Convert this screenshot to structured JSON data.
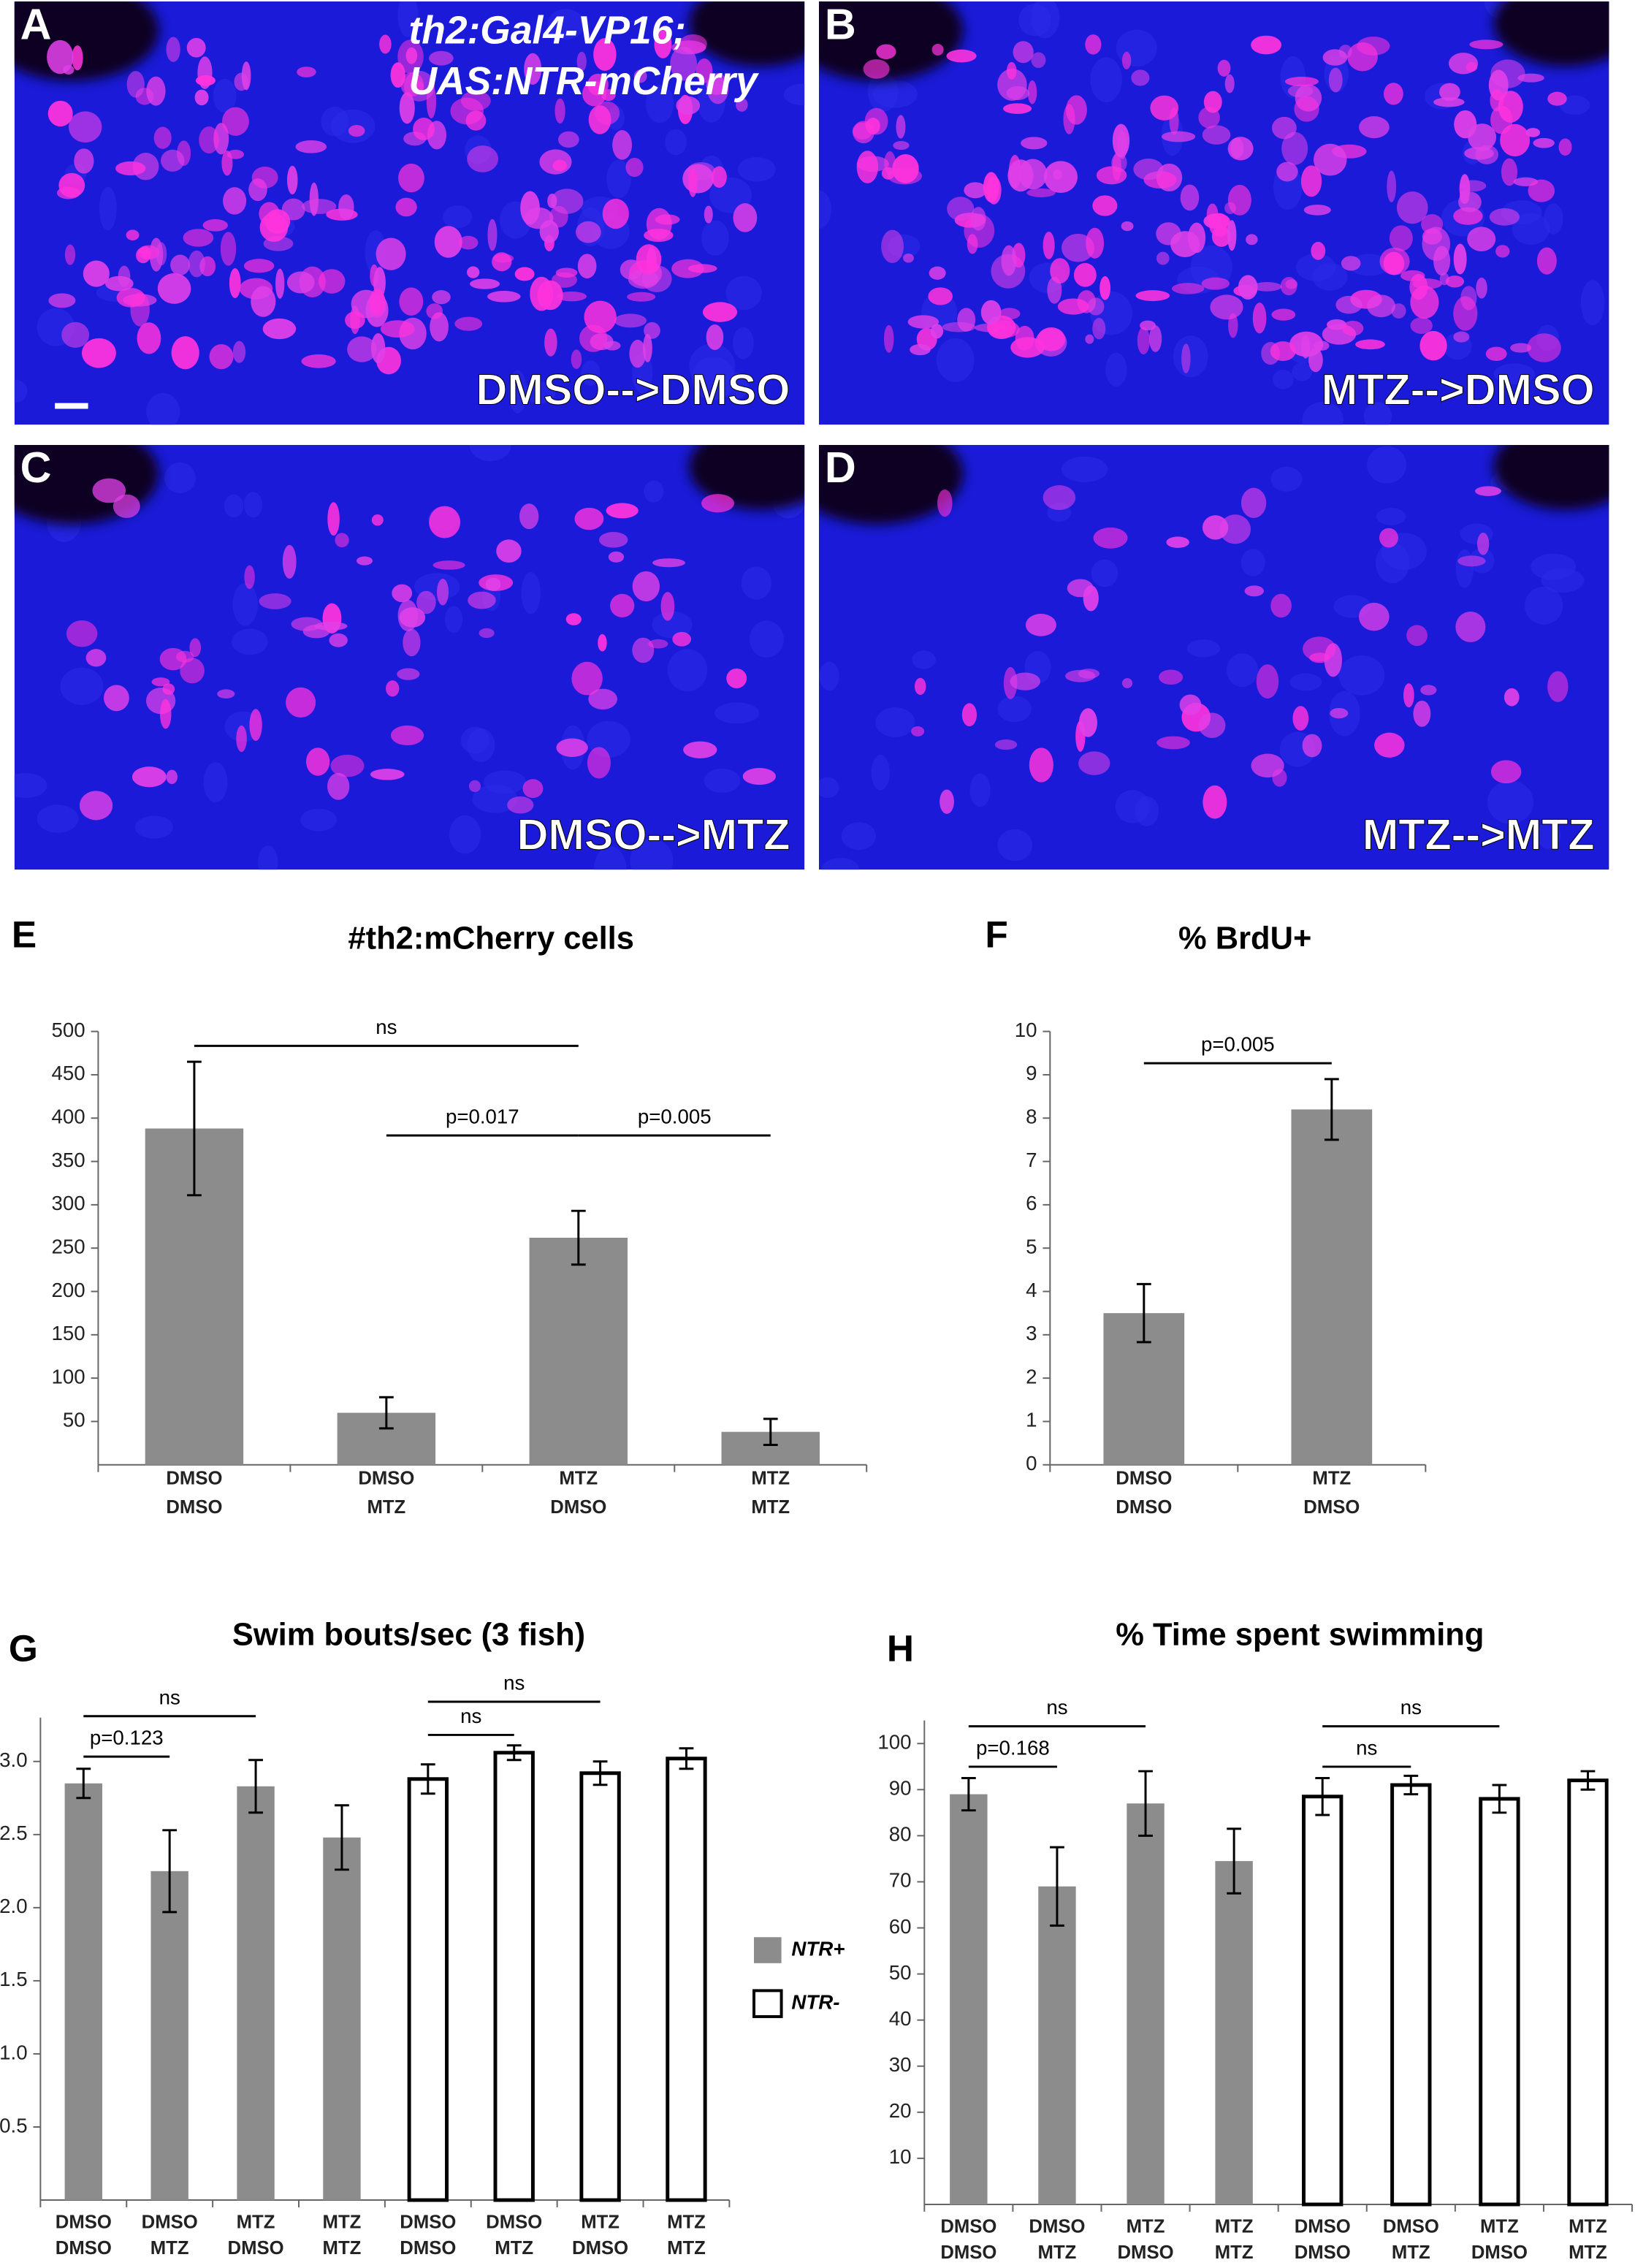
{
  "panels": [
    {
      "letter": "A",
      "label": "DMSO-->DMSO"
    },
    {
      "letter": "B",
      "label": "MTZ-->DMSO"
    },
    {
      "letter": "C",
      "label": "DMSO-->MTZ"
    },
    {
      "letter": "D",
      "label": "MTZ-->MTZ"
    }
  ],
  "panel_a_caption": [
    "th2:Gal4-VP16;",
    "UAS:NTR-mCherry"
  ],
  "chart_data": [
    {
      "type": "bar",
      "panel": "E",
      "title": "#th2:mCherry cells",
      "categories": [
        [
          "DMSO",
          "DMSO"
        ],
        [
          "DMSO",
          "MTZ"
        ],
        [
          "MTZ",
          "DMSO"
        ],
        [
          "MTZ",
          "MTZ"
        ]
      ],
      "series": [
        {
          "color": "#8c8c8c",
          "values": [
            388,
            60,
            262,
            38
          ],
          "errors": [
            77,
            18,
            31,
            15
          ]
        }
      ],
      "ylim": [
        0,
        500
      ],
      "yticks": [
        50,
        100,
        150,
        200,
        250,
        300,
        350,
        400,
        450,
        500
      ],
      "annotations": [
        {
          "text": "ns",
          "from": 0,
          "to": 2
        },
        {
          "text": "p=0.017",
          "from": 1,
          "to": 2
        },
        {
          "text": "p=0.005",
          "from": 2,
          "to": 3
        }
      ]
    },
    {
      "type": "bar",
      "panel": "F",
      "title": "% BrdU+",
      "categories": [
        [
          "DMSO",
          "DMSO"
        ],
        [
          "MTZ",
          "DMSO"
        ]
      ],
      "series": [
        {
          "color": "#8c8c8c",
          "values": [
            3.5,
            8.2
          ],
          "errors": [
            0.67,
            0.7
          ]
        }
      ],
      "ylim": [
        0,
        10
      ],
      "yticks": [
        0,
        1,
        2,
        3,
        4,
        5,
        6,
        7,
        8,
        9,
        10
      ],
      "annotations": [
        {
          "text": "p=0.005",
          "from": 0,
          "to": 1
        }
      ]
    },
    {
      "type": "bar",
      "panel": "G",
      "title": "Swim bouts/sec (3 fish)",
      "categories": [
        [
          "DMSO",
          "DMSO"
        ],
        [
          "DMSO",
          "MTZ"
        ],
        [
          "MTZ",
          "DMSO"
        ],
        [
          "MTZ",
          "MTZ"
        ],
        [
          "DMSO",
          "DMSO"
        ],
        [
          "DMSO",
          "MTZ"
        ],
        [
          "MTZ",
          "DMSO"
        ],
        [
          "MTZ",
          "MTZ"
        ]
      ],
      "series": [
        {
          "name": "NTR+",
          "color": "#8c8c8c",
          "edgecolor": "#8c8c8c",
          "values": [
            2.85,
            2.25,
            2.83,
            2.48,
            null,
            null,
            null,
            null
          ],
          "errors": [
            0.1,
            0.28,
            0.18,
            0.22,
            null,
            null,
            null,
            null
          ]
        },
        {
          "name": "NTR-",
          "color": "#ffffff",
          "edgecolor": "#000000",
          "values": [
            null,
            null,
            null,
            null,
            2.88,
            3.06,
            2.92,
            3.02
          ],
          "errors": [
            null,
            null,
            null,
            null,
            0.1,
            0.05,
            0.08,
            0.07
          ]
        }
      ],
      "ylim": [
        0,
        3.3
      ],
      "yticks": [
        0.5,
        {
          "value": 1,
          "label": "1.0"
        },
        1.5,
        {
          "value": 2,
          "label": "2.0"
        },
        2.5,
        {
          "value": 3,
          "label": "3.0"
        }
      ],
      "annotations": [
        {
          "text": "p=0.123",
          "from": 0,
          "to": 1
        },
        {
          "text": "ns",
          "from": 0,
          "to": 2
        },
        {
          "text": "ns",
          "from": 4,
          "to": 5
        },
        {
          "text": "ns",
          "from": 4,
          "to": 6
        }
      ]
    },
    {
      "type": "bar",
      "panel": "H",
      "title": "% Time spent swimming",
      "categories": [
        [
          "DMSO",
          "DMSO"
        ],
        [
          "DMSO",
          "MTZ"
        ],
        [
          "MTZ",
          "DMSO"
        ],
        [
          "MTZ",
          "MTZ"
        ],
        [
          "DMSO",
          "DMSO"
        ],
        [
          "DMSO",
          "MTZ"
        ],
        [
          "MTZ",
          "DMSO"
        ],
        [
          "MTZ",
          "MTZ"
        ]
      ],
      "series": [
        {
          "color": "#8c8c8c",
          "edgecolor": "#8c8c8c",
          "values": [
            89,
            69,
            87,
            74.5,
            null,
            null,
            null,
            null
          ],
          "errors": [
            3.5,
            8.5,
            7,
            7,
            null,
            null,
            null,
            null
          ]
        },
        {
          "color": "#ffffff",
          "edgecolor": "#000000",
          "values": [
            null,
            null,
            null,
            null,
            88.5,
            91,
            88,
            92
          ],
          "errors": [
            null,
            null,
            null,
            null,
            4,
            2,
            3,
            2
          ]
        }
      ],
      "ylim": [
        0,
        105
      ],
      "yticks": [
        10,
        20,
        30,
        40,
        50,
        60,
        70,
        80,
        90,
        100
      ],
      "annotations": [
        {
          "text": "p=0.168",
          "from": 0,
          "to": 1
        },
        {
          "text": "ns",
          "from": 0,
          "to": 2
        },
        {
          "text": "ns",
          "from": 4,
          "to": 5
        },
        {
          "text": "ns",
          "from": 4,
          "to": 6
        }
      ]
    }
  ]
}
